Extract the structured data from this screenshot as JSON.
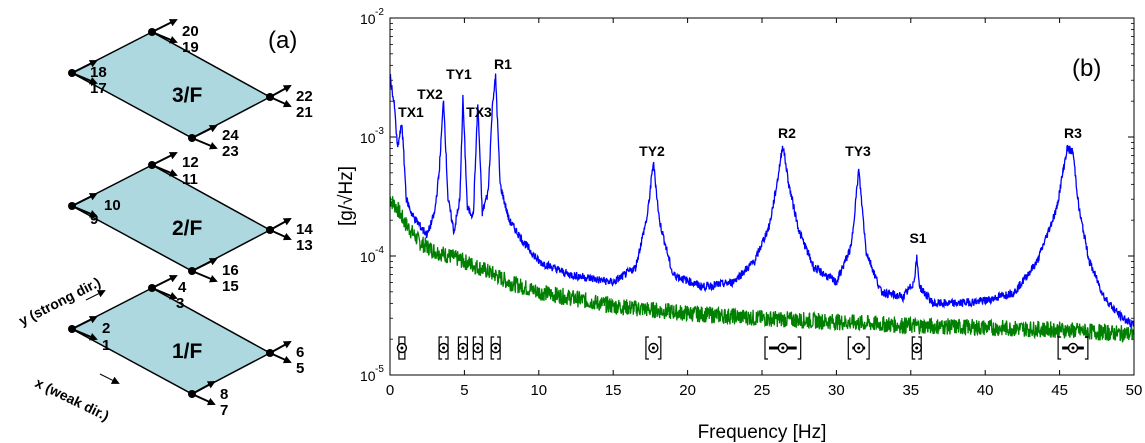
{
  "panel_a": {
    "label": "(a)",
    "floors": [
      {
        "name": "3/F",
        "sensors": [
          "20",
          "19",
          "18",
          "17",
          "22",
          "21",
          "24",
          "23"
        ]
      },
      {
        "name": "2/F",
        "sensors": [
          "12",
          "11",
          "10",
          "9",
          "14",
          "13",
          "16",
          "15"
        ]
      },
      {
        "name": "1/F",
        "sensors": [
          "4",
          "3",
          "2",
          "1",
          "6",
          "5",
          "8",
          "7"
        ]
      }
    ],
    "y_dir": "y (strong dir.)",
    "x_dir": "x (weak dir.)"
  },
  "chart_data": {
    "type": "line",
    "panel_label": "(b)",
    "xlabel": "Frequency [Hz]",
    "ylabel": "[g/√Hz]",
    "xlim": [
      0,
      50
    ],
    "ylim": [
      1e-05,
      0.01
    ],
    "yscale": "log",
    "x_ticks": [
      0,
      5,
      10,
      15,
      20,
      25,
      30,
      35,
      40,
      45,
      50
    ],
    "y_tick_labels": [
      "10",
      "10",
      "10",
      "10"
    ],
    "y_tick_exponents": [
      "-5",
      "-4",
      "-3",
      "-2"
    ],
    "colors": {
      "series1": "#0000ff",
      "series2": "#008000"
    },
    "series": [
      {
        "color": "#0000ff",
        "x": [
          0,
          0.3,
          0.5,
          0.8,
          1.1,
          1.5,
          2.0,
          2.5,
          3.0,
          3.3,
          3.6,
          3.9,
          4.3,
          4.7,
          4.9,
          5.2,
          5.6,
          5.9,
          6.2,
          6.6,
          6.9,
          7.1,
          7.4,
          8,
          9,
          10,
          12,
          15,
          16.5,
          17.3,
          17.7,
          18.1,
          19,
          21,
          23,
          24.5,
          25.5,
          26.0,
          26.4,
          26.8,
          27.5,
          28.5,
          30,
          31.0,
          31.5,
          32.0,
          33,
          34.5,
          35.2,
          35.4,
          35.6,
          36.5,
          38,
          40,
          42,
          43.5,
          44.8,
          45.5,
          45.9,
          46.3,
          47,
          48,
          49,
          50
        ],
        "y": [
          0.0033,
          0.0018,
          0.0008,
          0.0013,
          0.0003,
          0.00022,
          0.00018,
          0.00015,
          0.00023,
          0.0005,
          0.0021,
          0.0003,
          0.00016,
          0.0003,
          0.0021,
          0.00025,
          0.00022,
          0.0019,
          0.00023,
          0.00035,
          0.002,
          0.0032,
          0.0004,
          0.0002,
          0.00013,
          9e-05,
          7e-05,
          6e-05,
          8e-05,
          0.00022,
          0.00062,
          0.0002,
          7e-05,
          5.5e-05,
          6e-05,
          9e-05,
          0.00018,
          0.0004,
          0.00087,
          0.0004,
          0.00016,
          8e-05,
          6e-05,
          0.00012,
          0.00053,
          0.00011,
          5e-05,
          4.5e-05,
          6e-05,
          9.5e-05,
          5.5e-05,
          4e-05,
          4e-05,
          4.2e-05,
          5e-05,
          9e-05,
          0.00025,
          0.0008,
          0.00075,
          0.00025,
          9e-05,
          4.5e-05,
          3.2e-05,
          2.6e-05
        ]
      },
      {
        "color": "#008000",
        "x": [
          0,
          0.5,
          1,
          2,
          3,
          4,
          5,
          6,
          7,
          8,
          10,
          12,
          15,
          20,
          25,
          30,
          35,
          40,
          45,
          50
        ],
        "y": [
          0.0003,
          0.00025,
          0.00019,
          0.00013,
          0.00011,
          0.0001,
          9e-05,
          8e-05,
          7e-05,
          6e-05,
          5e-05,
          4.5e-05,
          3.8e-05,
          3.3e-05,
          3e-05,
          2.8e-05,
          2.6e-05,
          2.5e-05,
          2.4e-05,
          2.2e-05
        ]
      }
    ],
    "annotations": [
      {
        "text": "TX1",
        "x": 0.8
      },
      {
        "text": "TX2",
        "x": 3.6
      },
      {
        "text": "TY1",
        "x": 4.9
      },
      {
        "text": "TX3",
        "x": 5.9
      },
      {
        "text": "R1",
        "x": 7.1
      },
      {
        "text": "TY2",
        "x": 17.7
      },
      {
        "text": "R2",
        "x": 26.4
      },
      {
        "text": "TY3",
        "x": 31.5
      },
      {
        "text": "S1",
        "x": 35.4
      },
      {
        "text": "R3",
        "x": 45.9
      }
    ],
    "error_bars": [
      {
        "x": 0.8,
        "lo": 0.6,
        "hi": 1.0
      },
      {
        "x": 3.6,
        "lo": 3.3,
        "hi": 3.9
      },
      {
        "x": 4.9,
        "lo": 4.6,
        "hi": 5.2
      },
      {
        "x": 5.9,
        "lo": 5.6,
        "hi": 6.2
      },
      {
        "x": 7.1,
        "lo": 6.8,
        "hi": 7.4
      },
      {
        "x": 17.7,
        "lo": 17.2,
        "hi": 18.2
      },
      {
        "x": 26.4,
        "lo": 25.2,
        "hi": 27.6
      },
      {
        "x": 31.5,
        "lo": 30.8,
        "hi": 32.2
      },
      {
        "x": 35.4,
        "lo": 35.1,
        "hi": 35.7
      },
      {
        "x": 45.9,
        "lo": 44.9,
        "hi": 46.9
      }
    ]
  }
}
